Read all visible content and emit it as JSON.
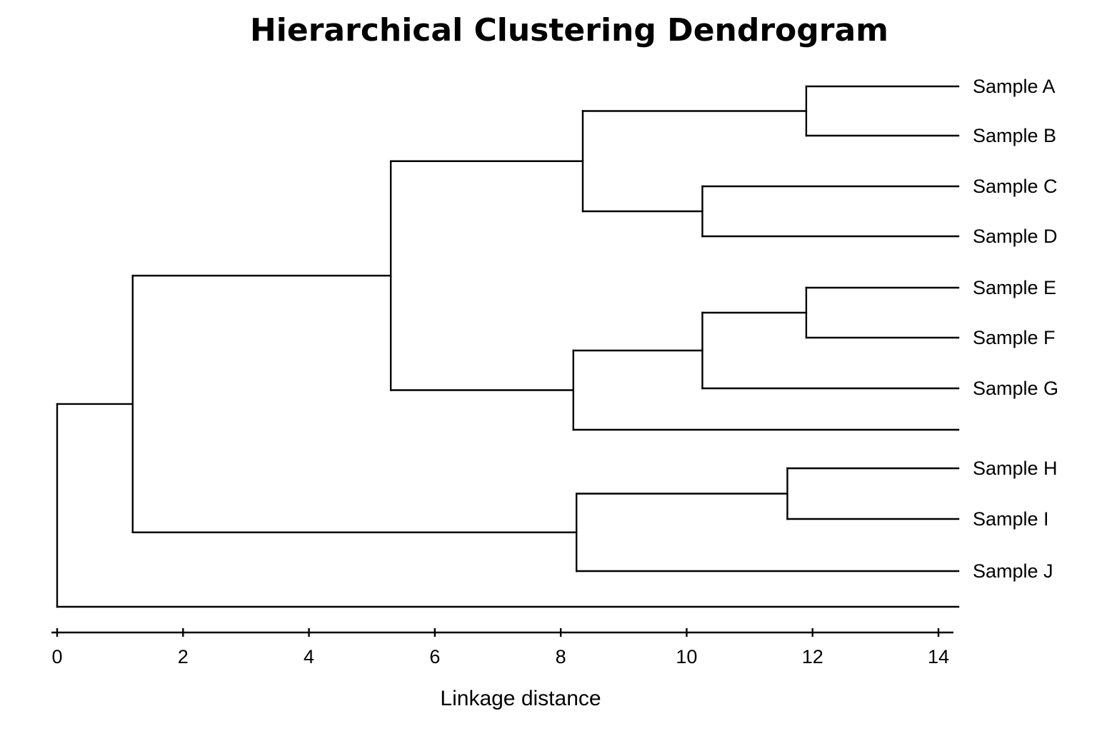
{
  "chart_data": {
    "type": "dendrogram",
    "title": "Hierarchical Clustering Dendrogram",
    "xlabel": "Linkage distance",
    "xlim": [
      0,
      14
    ],
    "x_ticks": [
      0,
      2,
      4,
      6,
      8,
      10,
      12,
      14
    ],
    "orientation": "leaves-right",
    "grid": false,
    "leaves": [
      {
        "id": "A",
        "label": "Sample A"
      },
      {
        "id": "B",
        "label": "Sample B"
      },
      {
        "id": "C",
        "label": "Sample C"
      },
      {
        "id": "D",
        "label": "Sample D"
      },
      {
        "id": "E",
        "label": "Sample E"
      },
      {
        "id": "F",
        "label": "Sample F"
      },
      {
        "id": "G",
        "label": "Sample G"
      },
      {
        "id": "U1",
        "label": ""
      },
      {
        "id": "H",
        "label": "Sample H"
      },
      {
        "id": "I",
        "label": "Sample I"
      },
      {
        "id": "J",
        "label": "Sample J"
      },
      {
        "id": "U2",
        "label": ""
      }
    ],
    "merges": [
      {
        "id": "AB",
        "children": [
          "A",
          "B"
        ],
        "distance": 11.9
      },
      {
        "id": "CD",
        "children": [
          "C",
          "D"
        ],
        "distance": 10.25
      },
      {
        "id": "ABCD",
        "children": [
          "AB",
          "CD"
        ],
        "distance": 8.35
      },
      {
        "id": "EF",
        "children": [
          "E",
          "F"
        ],
        "distance": 11.9
      },
      {
        "id": "EFG",
        "children": [
          "EF",
          "G"
        ],
        "distance": 10.25
      },
      {
        "id": "EFGU1",
        "children": [
          "EFG",
          "U1"
        ],
        "distance": 8.2
      },
      {
        "id": "AG",
        "children": [
          "ABCD",
          "EFGU1"
        ],
        "distance": 5.3
      },
      {
        "id": "HI",
        "children": [
          "H",
          "I"
        ],
        "distance": 11.6
      },
      {
        "id": "HIJ",
        "children": [
          "HI",
          "J"
        ],
        "distance": 8.25
      },
      {
        "id": "AJ",
        "children": [
          "AG",
          "HIJ"
        ],
        "distance": 1.2
      },
      {
        "id": "ROOT",
        "children": [
          "AJ",
          "U2"
        ],
        "distance": 0
      }
    ]
  }
}
